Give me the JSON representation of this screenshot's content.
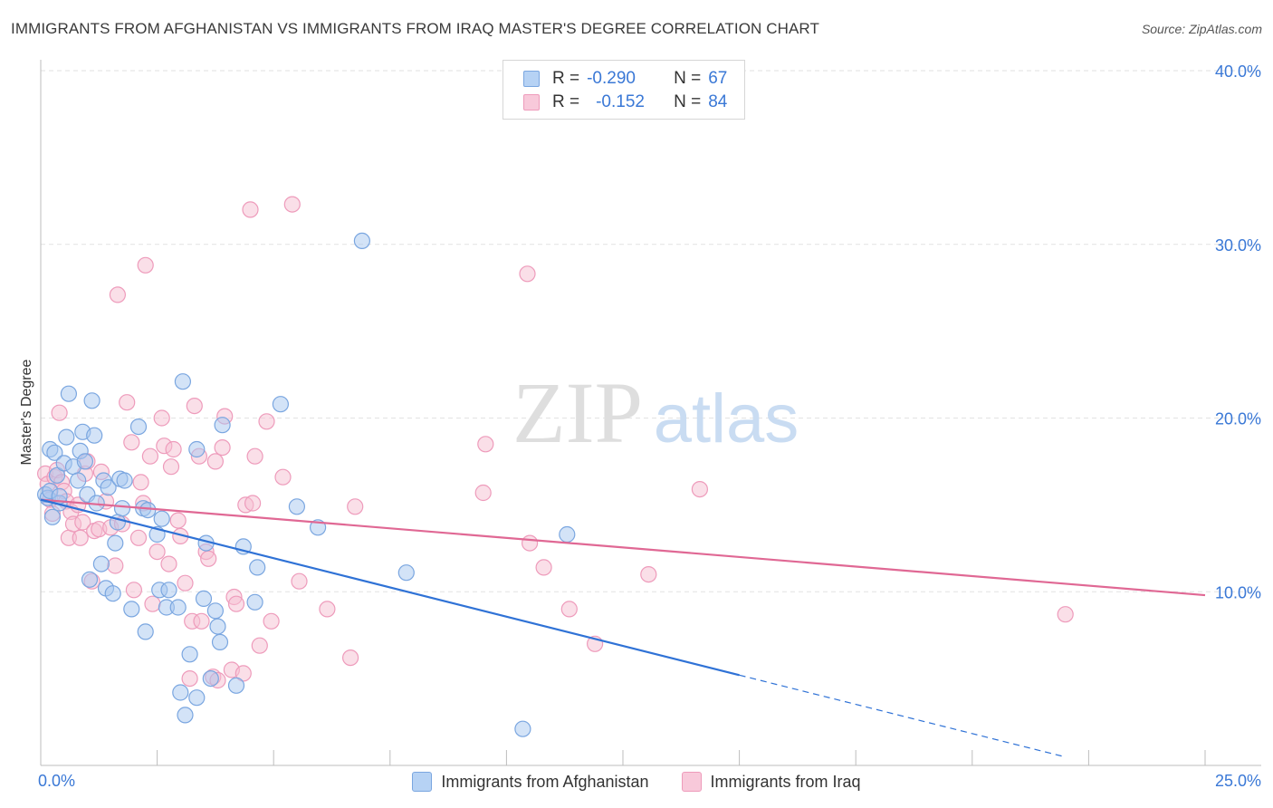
{
  "header": {
    "title": "IMMIGRANTS FROM AFGHANISTAN VS IMMIGRANTS FROM IRAQ MASTER'S DEGREE CORRELATION CHART",
    "source": "Source: ZipAtlas.com"
  },
  "watermark": {
    "zip": "ZIP",
    "atlas": "atlas"
  },
  "legend": {
    "r_label": "R =",
    "n_label": "N =",
    "rows": [
      {
        "r": "-0.290",
        "n": "67"
      },
      {
        "r": "-0.152",
        "n": "84"
      }
    ]
  },
  "bottom_legend": {
    "afghanistan": "Immigrants from Afghanistan",
    "iraq": "Immigrants from Iraq"
  },
  "axis_labels": {
    "x_min": "0.0%",
    "x_max": "25.0%",
    "ylabel": "Master's Degree"
  },
  "colors": {
    "blue_fill": "#a8c8f0",
    "blue_stroke": "#7aa6e0",
    "blue_line": "#2f72d6",
    "pink_fill": "#f6bfd2",
    "pink_stroke": "#ee9bbb",
    "pink_line": "#e06894",
    "tick_label": "#3a78d6",
    "grid": "#e2e2e2"
  },
  "chart_data": {
    "type": "scatter",
    "title": "IMMIGRANTS FROM AFGHANISTAN VS IMMIGRANTS FROM IRAQ MASTER'S DEGREE CORRELATION CHART",
    "xlabel": "",
    "ylabel": "Master's Degree",
    "xlim": [
      0,
      25
    ],
    "ylim": [
      0,
      40
    ],
    "x_unit": "%",
    "y_unit": "%",
    "y_ticks": [
      10,
      20,
      30,
      40
    ],
    "y_tick_labels": [
      "10.0%",
      "20.0%",
      "30.0%",
      "40.0%"
    ],
    "x_tick_labels": [
      "0.0%",
      "25.0%"
    ],
    "grid": true,
    "legend_position": "top-center",
    "series": [
      {
        "name": "Immigrants from Afghanistan",
        "r": -0.29,
        "n": 67,
        "trend": {
          "x0": 0,
          "y0": 15.3,
          "x1": 15,
          "y1": 5.2,
          "dashed_to_x": 22
        },
        "points": [
          [
            0.1,
            15.6
          ],
          [
            0.15,
            15.4
          ],
          [
            0.2,
            15.8
          ],
          [
            0.25,
            14.3
          ],
          [
            0.2,
            18.2
          ],
          [
            0.3,
            18.0
          ],
          [
            0.35,
            16.7
          ],
          [
            0.4,
            15.1
          ],
          [
            0.5,
            17.4
          ],
          [
            0.55,
            18.9
          ],
          [
            0.6,
            21.4
          ],
          [
            0.7,
            17.2
          ],
          [
            0.8,
            16.4
          ],
          [
            0.85,
            18.1
          ],
          [
            0.9,
            19.2
          ],
          [
            0.95,
            17.5
          ],
          [
            1.0,
            15.6
          ],
          [
            1.05,
            10.7
          ],
          [
            1.1,
            21.0
          ],
          [
            1.15,
            19.0
          ],
          [
            1.2,
            15.1
          ],
          [
            1.3,
            11.6
          ],
          [
            1.35,
            16.4
          ],
          [
            1.4,
            10.2
          ],
          [
            1.45,
            16.0
          ],
          [
            1.55,
            9.9
          ],
          [
            1.6,
            12.8
          ],
          [
            1.65,
            14.0
          ],
          [
            1.7,
            16.5
          ],
          [
            1.75,
            14.8
          ],
          [
            1.8,
            16.4
          ],
          [
            1.95,
            9.0
          ],
          [
            2.1,
            19.5
          ],
          [
            2.2,
            14.8
          ],
          [
            2.25,
            7.7
          ],
          [
            2.3,
            14.7
          ],
          [
            2.5,
            13.3
          ],
          [
            2.55,
            10.1
          ],
          [
            2.6,
            14.2
          ],
          [
            2.7,
            9.1
          ],
          [
            2.75,
            10.1
          ],
          [
            2.95,
            9.1
          ],
          [
            3.0,
            4.2
          ],
          [
            3.05,
            22.1
          ],
          [
            3.1,
            2.9
          ],
          [
            3.2,
            6.4
          ],
          [
            3.35,
            3.9
          ],
          [
            3.35,
            18.2
          ],
          [
            3.5,
            9.6
          ],
          [
            3.55,
            12.8
          ],
          [
            3.65,
            5.0
          ],
          [
            3.75,
            8.9
          ],
          [
            3.8,
            8.0
          ],
          [
            3.85,
            7.1
          ],
          [
            3.9,
            19.6
          ],
          [
            4.2,
            4.6
          ],
          [
            4.35,
            12.6
          ],
          [
            4.6,
            9.4
          ],
          [
            4.65,
            11.4
          ],
          [
            5.15,
            20.8
          ],
          [
            5.5,
            14.9
          ],
          [
            5.95,
            13.7
          ],
          [
            6.9,
            30.2
          ],
          [
            7.85,
            11.1
          ],
          [
            10.35,
            2.1
          ],
          [
            11.3,
            13.3
          ],
          [
            0.4,
            15.5
          ]
        ]
      },
      {
        "name": "Immigrants from Iraq",
        "r": -0.152,
        "n": 84,
        "trend": {
          "x0": 0,
          "y0": 15.3,
          "x1": 25,
          "y1": 9.8
        },
        "points": [
          [
            0.1,
            16.8
          ],
          [
            0.15,
            16.2
          ],
          [
            0.2,
            15.3
          ],
          [
            0.25,
            14.5
          ],
          [
            0.3,
            16.6
          ],
          [
            0.35,
            17.0
          ],
          [
            0.4,
            20.3
          ],
          [
            0.45,
            16.3
          ],
          [
            0.5,
            15.8
          ],
          [
            0.55,
            15.2
          ],
          [
            0.6,
            13.1
          ],
          [
            0.65,
            14.6
          ],
          [
            0.7,
            13.9
          ],
          [
            0.8,
            15.0
          ],
          [
            0.85,
            13.1
          ],
          [
            0.9,
            14.0
          ],
          [
            0.95,
            16.8
          ],
          [
            1.0,
            17.5
          ],
          [
            1.1,
            10.6
          ],
          [
            1.15,
            13.5
          ],
          [
            1.25,
            13.6
          ],
          [
            1.3,
            16.9
          ],
          [
            1.4,
            15.2
          ],
          [
            1.5,
            13.7
          ],
          [
            1.6,
            11.5
          ],
          [
            1.65,
            27.1
          ],
          [
            1.75,
            13.9
          ],
          [
            1.85,
            20.9
          ],
          [
            1.95,
            18.6
          ],
          [
            2.0,
            10.1
          ],
          [
            2.1,
            13.1
          ],
          [
            2.15,
            16.3
          ],
          [
            2.2,
            15.1
          ],
          [
            2.25,
            28.8
          ],
          [
            2.35,
            17.8
          ],
          [
            2.4,
            9.3
          ],
          [
            2.5,
            12.3
          ],
          [
            2.6,
            20.0
          ],
          [
            2.65,
            18.4
          ],
          [
            2.75,
            11.6
          ],
          [
            2.8,
            17.2
          ],
          [
            2.85,
            18.2
          ],
          [
            2.95,
            14.1
          ],
          [
            3.0,
            13.2
          ],
          [
            3.1,
            10.5
          ],
          [
            3.2,
            5.0
          ],
          [
            3.25,
            8.3
          ],
          [
            3.3,
            20.7
          ],
          [
            3.4,
            17.8
          ],
          [
            3.45,
            8.3
          ],
          [
            3.55,
            12.3
          ],
          [
            3.6,
            11.9
          ],
          [
            3.7,
            5.1
          ],
          [
            3.75,
            17.5
          ],
          [
            3.8,
            4.9
          ],
          [
            3.9,
            18.3
          ],
          [
            3.95,
            20.1
          ],
          [
            4.1,
            5.5
          ],
          [
            4.15,
            9.7
          ],
          [
            4.2,
            9.3
          ],
          [
            4.35,
            5.3
          ],
          [
            4.4,
            15.0
          ],
          [
            4.5,
            32.0
          ],
          [
            4.55,
            15.1
          ],
          [
            4.6,
            17.8
          ],
          [
            4.7,
            6.9
          ],
          [
            4.85,
            19.8
          ],
          [
            4.95,
            8.3
          ],
          [
            5.2,
            16.6
          ],
          [
            5.4,
            32.3
          ],
          [
            5.55,
            10.6
          ],
          [
            6.15,
            9.0
          ],
          [
            6.65,
            6.2
          ],
          [
            6.75,
            14.9
          ],
          [
            9.5,
            15.7
          ],
          [
            9.55,
            18.5
          ],
          [
            10.45,
            28.3
          ],
          [
            10.5,
            12.8
          ],
          [
            10.8,
            11.4
          ],
          [
            11.35,
            9.0
          ],
          [
            11.9,
            7.0
          ],
          [
            13.05,
            11.0
          ],
          [
            14.15,
            15.9
          ],
          [
            22.0,
            8.7
          ]
        ]
      }
    ]
  }
}
